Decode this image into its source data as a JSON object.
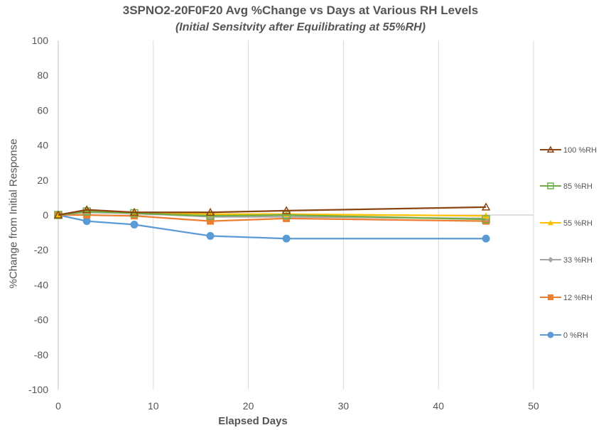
{
  "chart_data": {
    "type": "line",
    "title": "3SPNO2-20F0F20 Avg %Change vs Days at Various RH Levels",
    "subtitle": "(Initial Sensitvity after Equilibrating at 55%RH)",
    "xlabel": "Elapsed Days",
    "ylabel": "%Change from Initial Response",
    "xlim": [
      0,
      50
    ],
    "ylim": [
      -100,
      100
    ],
    "x_ticks": [
      "0",
      "10",
      "20",
      "30",
      "40",
      "50"
    ],
    "y_ticks": [
      "100",
      "80",
      "60",
      "40",
      "20",
      "0",
      "-20",
      "-40",
      "-60",
      "-80",
      "-100"
    ],
    "grid": {
      "vertical": true,
      "horizontal": false
    },
    "legend_position": "right",
    "series": [
      {
        "name": "100 %RH",
        "color": "#8B4513",
        "marker": "triangle-open",
        "x": [
          0,
          3,
          8,
          16,
          24,
          45
        ],
        "y": [
          0,
          3,
          1.5,
          1.5,
          2.5,
          4.5
        ]
      },
      {
        "name": "85 %RH",
        "color": "#70AD47",
        "marker": "square-open",
        "x": [
          0,
          3,
          8,
          16,
          24,
          45
        ],
        "y": [
          0,
          2,
          1,
          -0.5,
          0,
          -2.5
        ]
      },
      {
        "name": "55 %RH",
        "color": "#FFC000",
        "marker": "triangle",
        "x": [
          0,
          3,
          8,
          16,
          24,
          45
        ],
        "y": [
          0,
          2.5,
          1.5,
          0.5,
          0.5,
          -0.5
        ]
      },
      {
        "name": "33 %RH",
        "color": "#A5A5A5",
        "marker": "diamond",
        "x": [
          0,
          3,
          8,
          16,
          24,
          45
        ],
        "y": [
          0,
          1.5,
          1,
          -1,
          -1,
          -2
        ]
      },
      {
        "name": "12 %RH",
        "color": "#ED7D31",
        "marker": "square",
        "x": [
          0,
          3,
          8,
          16,
          24,
          45
        ],
        "y": [
          0,
          0,
          -0.5,
          -3.5,
          -2,
          -3.5
        ]
      },
      {
        "name": "0 %RH",
        "color": "#5B9BD5",
        "marker": "circle",
        "x": [
          0,
          3,
          8,
          16,
          24,
          45
        ],
        "y": [
          0,
          -3.5,
          -5.5,
          -12,
          -13.5,
          -13.5
        ]
      }
    ]
  }
}
